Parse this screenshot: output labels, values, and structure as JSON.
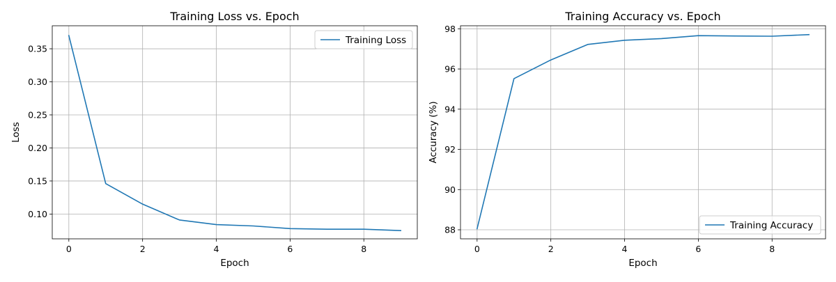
{
  "colors": {
    "series": "#1f77b4",
    "grid": "#b0b0b0",
    "background": "#ffffff"
  },
  "chart_data": [
    {
      "type": "line",
      "title": "Training Loss vs. Epoch",
      "xlabel": "Epoch",
      "ylabel": "Loss",
      "xlim": [
        -0.45,
        9.45
      ],
      "ylim": [
        0.0625,
        0.3848
      ],
      "xticks": [
        0,
        2,
        4,
        6,
        8
      ],
      "xtick_labels": [
        "0",
        "2",
        "4",
        "6",
        "8"
      ],
      "yticks": [
        0.1,
        0.15,
        0.2,
        0.25,
        0.3,
        0.35
      ],
      "ytick_labels": [
        "0.10",
        "0.15",
        "0.20",
        "0.25",
        "0.30",
        "0.35"
      ],
      "grid": true,
      "legend_position": "upper-right",
      "x": [
        0,
        1,
        2,
        3,
        4,
        5,
        6,
        7,
        8,
        9
      ],
      "series": [
        {
          "name": "Training Loss",
          "color": "#1f77b4",
          "values": [
            0.37,
            0.146,
            0.115,
            0.091,
            0.084,
            0.082,
            0.078,
            0.077,
            0.077,
            0.075
          ]
        }
      ]
    },
    {
      "type": "line",
      "title": "Training Accuracy vs. Epoch",
      "xlabel": "Epoch",
      "ylabel": "Accuracy (%)",
      "xlim": [
        -0.45,
        9.45
      ],
      "ylim": [
        87.55,
        98.15
      ],
      "xticks": [
        0,
        2,
        4,
        6,
        8
      ],
      "xtick_labels": [
        "0",
        "2",
        "4",
        "6",
        "8"
      ],
      "yticks": [
        88,
        90,
        92,
        94,
        96,
        98
      ],
      "ytick_labels": [
        "88",
        "90",
        "92",
        "94",
        "96",
        "98"
      ],
      "grid": true,
      "legend_position": "lower-right",
      "x": [
        0,
        1,
        2,
        3,
        4,
        5,
        6,
        7,
        8,
        9
      ],
      "series": [
        {
          "name": "Training Accuracy",
          "color": "#1f77b4",
          "values": [
            88.05,
            95.52,
            96.45,
            97.22,
            97.43,
            97.51,
            97.66,
            97.64,
            97.63,
            97.71
          ]
        }
      ]
    }
  ]
}
